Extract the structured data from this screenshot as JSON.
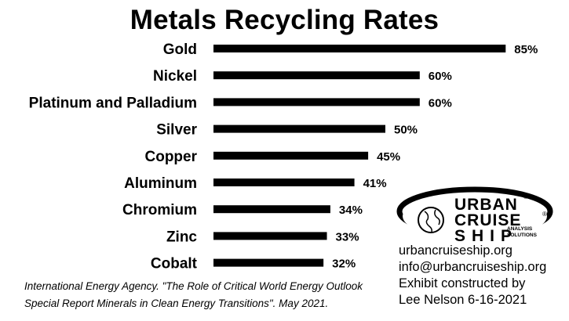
{
  "chart_data": {
    "type": "bar",
    "orientation": "horizontal",
    "title": "Metals Recycling Rates",
    "categories": [
      "Gold",
      "Nickel",
      "Platinum and Palladium",
      "Silver",
      "Copper",
      "Aluminum",
      "Chromium",
      "Zinc",
      "Cobalt"
    ],
    "values": [
      85,
      60,
      60,
      50,
      45,
      41,
      34,
      33,
      32
    ],
    "value_labels": [
      "85%",
      "60%",
      "60%",
      "50%",
      "45%",
      "41%",
      "34%",
      "33%",
      "32%"
    ],
    "xlabel": "",
    "ylabel": "",
    "grid": false,
    "bar_color": "#000000"
  },
  "source": {
    "line1": "International Energy Agency. \"The Role of Critical World Energy Outlook",
    "line2": "Special Report Minerals in Clean Energy Transitions\". May 2021."
  },
  "contact": {
    "website": "urbancruiseship.org",
    "email": "info@urbancruiseship.org",
    "credit_line1": "Exhibit constructed by",
    "credit_line2": "Lee Nelson 6-16-2021"
  },
  "logo": {
    "word1": "URBAN",
    "word2": "CRUISE",
    "word3": "SHIP",
    "tagline1": "ANALYSIS",
    "tagline2": "SOLUTIONS",
    "mark": "®"
  }
}
